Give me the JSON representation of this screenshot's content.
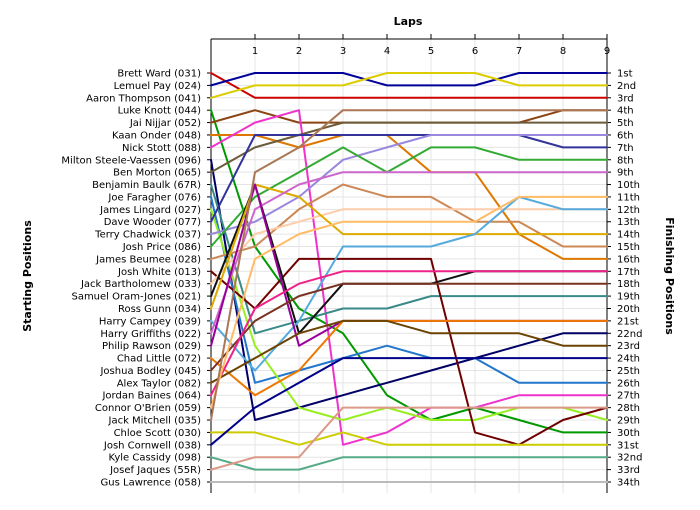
{
  "chart_data": {
    "type": "line",
    "title": "",
    "xlabel": "Laps",
    "ylabel_left": "Starting Positions",
    "ylabel_right": "Finishing Positions",
    "x": [
      0,
      1,
      2,
      3,
      4,
      5,
      6,
      7,
      8,
      9
    ],
    "x_tick_labels": [
      "1",
      "2",
      "3",
      "4",
      "5",
      "6",
      "7",
      "8",
      "9"
    ],
    "xlim": [
      0,
      9
    ],
    "ylim": [
      1,
      34
    ],
    "y_inverted": true,
    "grid": true,
    "finishing_labels": [
      "1st",
      "2nd",
      "3rd",
      "4th",
      "5th",
      "6th",
      "7th",
      "8th",
      "9th",
      "10th",
      "11th",
      "12th",
      "13th",
      "14th",
      "15th",
      "16th",
      "17th",
      "18th",
      "19th",
      "20th",
      "21st",
      "22nd",
      "23rd",
      "24th",
      "25th",
      "26th",
      "27th",
      "28th",
      "29th",
      "30th",
      "31st",
      "32nd",
      "33rd",
      "34th"
    ],
    "series": [
      {
        "name": "Brett Ward (031)",
        "color": "#cc0000",
        "values": [
          1,
          3,
          3,
          3,
          3,
          3,
          3,
          3,
          3,
          3
        ]
      },
      {
        "name": "Lemuel Pay (024)",
        "color": "#000099",
        "values": [
          2,
          1,
          1,
          1,
          2,
          2,
          2,
          1,
          1,
          1
        ]
      },
      {
        "name": "Aaron Thompson (041)",
        "color": "#ddcc00",
        "values": [
          3,
          2,
          2,
          2,
          1,
          1,
          1,
          2,
          2,
          2
        ]
      },
      {
        "name": "Luke Knott (044)",
        "color": "#009900",
        "values": [
          4,
          15,
          20,
          22,
          27,
          29,
          28,
          29,
          30,
          30
        ]
      },
      {
        "name": "Jai Nijjar (052)",
        "color": "#8b4513",
        "values": [
          5,
          4,
          5,
          5,
          5,
          5,
          5,
          5,
          4,
          4
        ]
      },
      {
        "name": "Kaan Onder (048)",
        "color": "#dd7700",
        "values": [
          6,
          6,
          7,
          6,
          6,
          9,
          9,
          14,
          16,
          16
        ]
      },
      {
        "name": "Nick Stott (088)",
        "color": "#ee33cc",
        "values": [
          7,
          5,
          4,
          31,
          30,
          28,
          28,
          27,
          27,
          27
        ]
      },
      {
        "name": "Milton Steele-Vaessen (096)",
        "color": "#000066",
        "values": [
          8,
          29,
          28,
          27,
          26,
          25,
          24,
          23,
          22,
          22
        ]
      },
      {
        "name": "Ben Morton (065)",
        "color": "#6b5b3a",
        "values": [
          9,
          7,
          6,
          5,
          5,
          5,
          5,
          5,
          5,
          5
        ]
      },
      {
        "name": "Benjamin Baulk (67R)",
        "color": "#3a8a88",
        "values": [
          10,
          22,
          21,
          20,
          20,
          19,
          19,
          19,
          19,
          19
        ]
      },
      {
        "name": "Joe Faragher (076)",
        "color": "#2277cc",
        "values": [
          11,
          26,
          25,
          24,
          23,
          24,
          24,
          26,
          26,
          26
        ]
      },
      {
        "name": "James Lingard (027)",
        "color": "#99ee22",
        "values": [
          12,
          23,
          28,
          29,
          28,
          29,
          29,
          28,
          28,
          29
        ]
      },
      {
        "name": "Dave Wooder (077)",
        "color": "#333399",
        "values": [
          13,
          6,
          6,
          6,
          6,
          6,
          6,
          6,
          7,
          7
        ]
      },
      {
        "name": "Terry Chadwick (037)",
        "color": "#9988dd",
        "values": [
          14,
          13,
          11,
          8,
          7,
          6,
          6,
          6,
          6,
          6
        ]
      },
      {
        "name": "Josh Price (086)",
        "color": "#33aa33",
        "values": [
          15,
          11,
          9,
          7,
          9,
          7,
          7,
          8,
          8,
          8
        ]
      },
      {
        "name": "James Beumee (028)",
        "color": "#cc8855",
        "values": [
          16,
          15,
          12,
          10,
          11,
          11,
          13,
          13,
          15,
          15
        ]
      },
      {
        "name": "Josh White (013)",
        "color": "#700000",
        "values": [
          17,
          20,
          16,
          16,
          16,
          16,
          30,
          31,
          29,
          28
        ]
      },
      {
        "name": "Jack Bartholomew (033)",
        "color": "#ffccaa",
        "values": [
          18,
          14,
          13,
          12,
          12,
          12,
          12,
          12,
          12,
          12
        ]
      },
      {
        "name": "Samuel Oram-Jones (021)",
        "color": "#111111",
        "values": [
          19,
          10,
          22,
          18,
          18,
          18,
          17,
          17,
          17,
          17
        ]
      },
      {
        "name": "Ross Gunn (034)",
        "color": "#ddaa00",
        "values": [
          20,
          10,
          11,
          14,
          14,
          14,
          14,
          14,
          14,
          14
        ]
      },
      {
        "name": "Harry Campey (039)",
        "color": "#55aadd",
        "values": [
          21,
          25,
          21,
          15,
          15,
          15,
          14,
          11,
          12,
          12
        ]
      },
      {
        "name": "Harry Griffiths (022)",
        "color": "#cc66cc",
        "values": [
          22,
          12,
          10,
          9,
          9,
          9,
          9,
          9,
          9,
          9
        ]
      },
      {
        "name": "Philip Rawson (029)",
        "color": "#990099",
        "values": [
          23,
          10,
          23,
          21,
          21,
          21,
          21,
          21,
          21,
          21
        ]
      },
      {
        "name": "Chad Little (072)",
        "color": "#ee7700",
        "values": [
          24,
          27,
          25,
          21,
          21,
          21,
          21,
          21,
          21,
          21
        ]
      },
      {
        "name": "Joshua Bodley (045)",
        "color": "#7a3322",
        "values": [
          25,
          21,
          19,
          18,
          18,
          18,
          18,
          18,
          18,
          18
        ]
      },
      {
        "name": "Alex Taylor (082)",
        "color": "#6a4400",
        "values": [
          26,
          24,
          22,
          21,
          21,
          22,
          22,
          22,
          23,
          23
        ]
      },
      {
        "name": "Jordan Baines (064)",
        "color": "#ee2288",
        "values": [
          27,
          20,
          18,
          17,
          17,
          17,
          17,
          17,
          17,
          17
        ]
      },
      {
        "name": "Connor O'Brien (059)",
        "color": "#ffbb66",
        "values": [
          28,
          16,
          14,
          13,
          13,
          13,
          13,
          11,
          11,
          11
        ]
      },
      {
        "name": "Jack Mitchell (035)",
        "color": "#aa7755",
        "values": [
          29,
          9,
          7,
          4,
          4,
          4,
          4,
          4,
          4,
          4
        ]
      },
      {
        "name": "Chloe Scott (030)",
        "color": "#cccc00",
        "values": [
          30,
          30,
          31,
          30,
          31,
          31,
          31,
          31,
          31,
          31
        ]
      },
      {
        "name": "Josh Cornwell (038)",
        "color": "#000088",
        "values": [
          31,
          28,
          26,
          24,
          24,
          24,
          24,
          24,
          24,
          24
        ]
      },
      {
        "name": "Kyle Cassidy (098)",
        "color": "#55aa88",
        "values": [
          32,
          33,
          33,
          32,
          32,
          32,
          32,
          32,
          32,
          32
        ]
      },
      {
        "name": "Josef Jaques (55R)",
        "color": "#dd9988",
        "values": [
          33,
          32,
          32,
          28,
          28,
          28,
          28,
          28,
          28,
          28
        ]
      },
      {
        "name": "Gus Lawrence (058)",
        "color": "#bbbbbb",
        "values": [
          34,
          34,
          34,
          34,
          34,
          34,
          34,
          34,
          34,
          34
        ]
      }
    ]
  }
}
